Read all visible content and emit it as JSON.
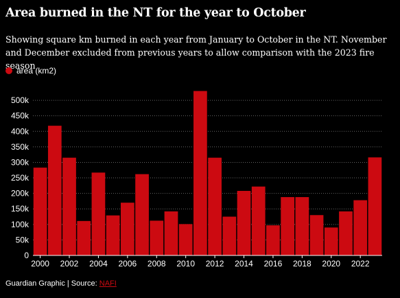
{
  "title": "Area burned in the NT for the year to October",
  "subtitle": "Showing square km burned in each year from January to October in the NT. November and December excluded from previous years to allow comparison with the 2023 fire season",
  "legend": {
    "label": "area (km2)",
    "color": "#cc0a11"
  },
  "source": {
    "prefix": "Guardian Graphic | Source: ",
    "link": "NAFI"
  },
  "colors": {
    "bar": "#cc0a11",
    "background": "#000000",
    "grid": "#666666",
    "text": "#ffffff"
  },
  "chart_data": {
    "type": "bar",
    "title": "Area burned in the NT for the year to October",
    "xlabel": "",
    "ylabel": "",
    "categories": [
      2000,
      2001,
      2002,
      2003,
      2004,
      2005,
      2006,
      2007,
      2008,
      2009,
      2010,
      2011,
      2012,
      2013,
      2014,
      2015,
      2016,
      2017,
      2018,
      2019,
      2020,
      2021,
      2022,
      2023
    ],
    "series": [
      {
        "name": "area (km2)",
        "values": [
          283000,
          418000,
          315000,
          111000,
          267000,
          129000,
          170000,
          262000,
          112000,
          142000,
          101000,
          530000,
          315000,
          125000,
          208000,
          222000,
          97000,
          188000,
          188000,
          130000,
          90000,
          142000,
          178000,
          316000
        ]
      }
    ],
    "x_tick_labels": [
      "2000",
      "2002",
      "2004",
      "2006",
      "2008",
      "2010",
      "2012",
      "2014",
      "2016",
      "2018",
      "2020",
      "2022"
    ],
    "y_tick_values": [
      0,
      50000,
      100000,
      150000,
      200000,
      250000,
      300000,
      350000,
      400000,
      450000,
      500000
    ],
    "y_tick_labels": [
      "0",
      "50k",
      "100k",
      "150k",
      "200k",
      "250k",
      "300k",
      "350k",
      "400k",
      "450k",
      "500k"
    ],
    "ylim": [
      0,
      540000
    ],
    "grid": true,
    "legend_position": "top-left"
  }
}
